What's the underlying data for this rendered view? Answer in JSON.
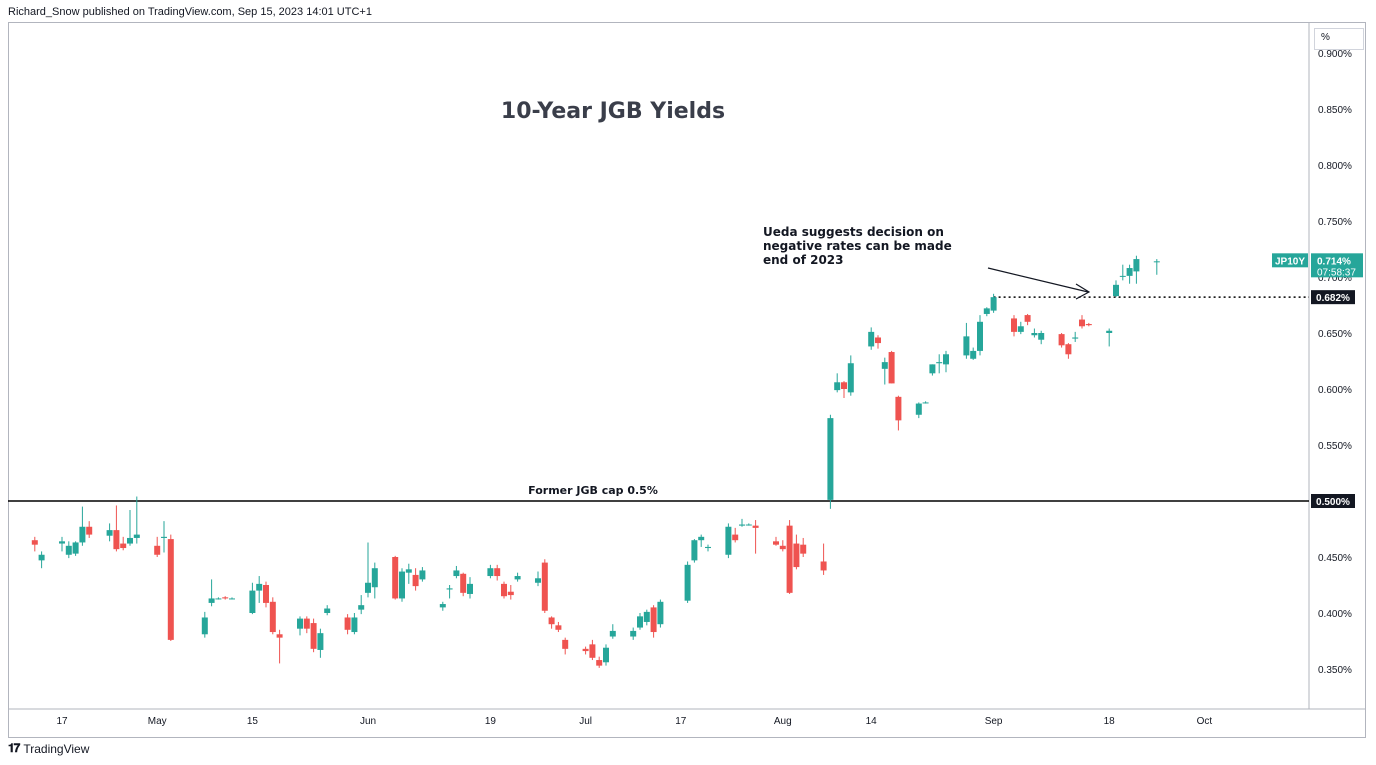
{
  "header": {
    "published": "Richard_Snow published on TradingView.com, Sep 15, 2023 14:01 UTC+1"
  },
  "footer": {
    "brand": "TradingView"
  },
  "colors": {
    "up": "#26a69a",
    "down": "#ef5350",
    "axis_text": "#131722",
    "grid_line": "#000000"
  },
  "chart_data": {
    "type": "candlestick",
    "title": "10-Year JGB Yields",
    "y_unit": "%",
    "ylim": [
      0.3,
      0.91
    ],
    "y_ticks": [
      "0.900%",
      "0.850%",
      "0.800%",
      "0.750%",
      "0.700%",
      "0.650%",
      "0.600%",
      "0.550%",
      "0.500%",
      "0.450%",
      "0.400%",
      "0.350%"
    ],
    "x_ticks": [
      {
        "label": "17",
        "date": "2023-04-17"
      },
      {
        "label": "May",
        "date": "2023-05-01"
      },
      {
        "label": "15",
        "date": "2023-05-15"
      },
      {
        "label": "Jun",
        "date": "2023-06-01"
      },
      {
        "label": "19",
        "date": "2023-06-19"
      },
      {
        "label": "Jul",
        "date": "2023-07-03"
      },
      {
        "label": "17",
        "date": "2023-07-17"
      },
      {
        "label": "Aug",
        "date": "2023-08-01"
      },
      {
        "label": "14",
        "date": "2023-08-14"
      },
      {
        "label": "Sep",
        "date": "2023-09-01"
      },
      {
        "label": "18",
        "date": "2023-09-18"
      },
      {
        "label": "Oct",
        "date": "2023-10-02"
      }
    ],
    "series_label": "JP10Y",
    "last_value_label": "0.714%",
    "countdown": "07:58:37",
    "hline_value": 0.5,
    "hline_label": "0.500%",
    "hline_annotation": "Former JGB cap 0.5%",
    "dotted_level": 0.682,
    "dotted_label": "0.682%",
    "annotation": [
      "Ueda suggests decision on",
      "negative rates can be made",
      "end of 2023"
    ],
    "candles": [
      {
        "d": "2023-04-13",
        "o": 0.465,
        "h": 0.468,
        "l": 0.455,
        "c": 0.461
      },
      {
        "d": "2023-04-14",
        "o": 0.447,
        "h": 0.455,
        "l": 0.44,
        "c": 0.452
      },
      {
        "d": "2023-04-17",
        "o": 0.462,
        "h": 0.468,
        "l": 0.455,
        "c": 0.464
      },
      {
        "d": "2023-04-18",
        "o": 0.452,
        "h": 0.464,
        "l": 0.449,
        "c": 0.46
      },
      {
        "d": "2023-04-19",
        "o": 0.453,
        "h": 0.464,
        "l": 0.451,
        "c": 0.463
      },
      {
        "d": "2023-04-20",
        "o": 0.463,
        "h": 0.495,
        "l": 0.46,
        "c": 0.477
      },
      {
        "d": "2023-04-21",
        "o": 0.477,
        "h": 0.482,
        "l": 0.467,
        "c": 0.47
      },
      {
        "d": "2023-04-24",
        "o": 0.469,
        "h": 0.48,
        "l": 0.464,
        "c": 0.474
      },
      {
        "d": "2023-04-25",
        "o": 0.474,
        "h": 0.496,
        "l": 0.455,
        "c": 0.457
      },
      {
        "d": "2023-04-26",
        "o": 0.462,
        "h": 0.468,
        "l": 0.456,
        "c": 0.458
      },
      {
        "d": "2023-04-27",
        "o": 0.462,
        "h": 0.492,
        "l": 0.46,
        "c": 0.467
      },
      {
        "d": "2023-04-28",
        "o": 0.467,
        "h": 0.504,
        "l": 0.462,
        "c": 0.47
      },
      {
        "d": "2023-05-01",
        "o": 0.46,
        "h": 0.468,
        "l": 0.45,
        "c": 0.452
      },
      {
        "d": "2023-05-02",
        "o": 0.467,
        "h": 0.482,
        "l": 0.454,
        "c": 0.468
      },
      {
        "d": "2023-05-03",
        "o": 0.466,
        "h": 0.47,
        "l": 0.375,
        "c": 0.376
      },
      {
        "d": "2023-05-08",
        "o": 0.381,
        "h": 0.401,
        "l": 0.378,
        "c": 0.396
      },
      {
        "d": "2023-05-09",
        "o": 0.409,
        "h": 0.43,
        "l": 0.406,
        "c": 0.413
      },
      {
        "d": "2023-05-10",
        "o": 0.413,
        "h": 0.414,
        "l": 0.412,
        "c": 0.413
      },
      {
        "d": "2023-05-11",
        "o": 0.414,
        "h": 0.415,
        "l": 0.412,
        "c": 0.413
      },
      {
        "d": "2023-05-12",
        "o": 0.413,
        "h": 0.414,
        "l": 0.412,
        "c": 0.413
      },
      {
        "d": "2023-05-15",
        "o": 0.4,
        "h": 0.427,
        "l": 0.399,
        "c": 0.42
      },
      {
        "d": "2023-05-16",
        "o": 0.42,
        "h": 0.433,
        "l": 0.409,
        "c": 0.426
      },
      {
        "d": "2023-05-17",
        "o": 0.425,
        "h": 0.428,
        "l": 0.405,
        "c": 0.409
      },
      {
        "d": "2023-05-18",
        "o": 0.41,
        "h": 0.414,
        "l": 0.381,
        "c": 0.383
      },
      {
        "d": "2023-05-19",
        "o": 0.381,
        "h": 0.385,
        "l": 0.355,
        "c": 0.378
      },
      {
        "d": "2023-05-22",
        "o": 0.386,
        "h": 0.397,
        "l": 0.38,
        "c": 0.395
      },
      {
        "d": "2023-05-23",
        "o": 0.395,
        "h": 0.397,
        "l": 0.382,
        "c": 0.386
      },
      {
        "d": "2023-05-24",
        "o": 0.391,
        "h": 0.395,
        "l": 0.365,
        "c": 0.368
      },
      {
        "d": "2023-05-25",
        "o": 0.367,
        "h": 0.386,
        "l": 0.36,
        "c": 0.382
      },
      {
        "d": "2023-05-26",
        "o": 0.4,
        "h": 0.407,
        "l": 0.398,
        "c": 0.404
      },
      {
        "d": "2023-05-29",
        "o": 0.396,
        "h": 0.399,
        "l": 0.381,
        "c": 0.385
      },
      {
        "d": "2023-05-30",
        "o": 0.383,
        "h": 0.4,
        "l": 0.381,
        "c": 0.396
      },
      {
        "d": "2023-05-31",
        "o": 0.403,
        "h": 0.416,
        "l": 0.399,
        "c": 0.407
      },
      {
        "d": "2023-06-01",
        "o": 0.418,
        "h": 0.463,
        "l": 0.414,
        "c": 0.427
      },
      {
        "d": "2023-06-02",
        "o": 0.423,
        "h": 0.445,
        "l": 0.413,
        "c": 0.44
      },
      {
        "d": "2023-06-05",
        "o": 0.45,
        "h": 0.451,
        "l": 0.412,
        "c": 0.413
      },
      {
        "d": "2023-06-06",
        "o": 0.413,
        "h": 0.44,
        "l": 0.41,
        "c": 0.437
      },
      {
        "d": "2023-06-07",
        "o": 0.436,
        "h": 0.444,
        "l": 0.426,
        "c": 0.439
      },
      {
        "d": "2023-06-08",
        "o": 0.434,
        "h": 0.44,
        "l": 0.42,
        "c": 0.424
      },
      {
        "d": "2023-06-09",
        "o": 0.43,
        "h": 0.441,
        "l": 0.428,
        "c": 0.438
      },
      {
        "d": "2023-06-12",
        "o": 0.405,
        "h": 0.41,
        "l": 0.402,
        "c": 0.408
      },
      {
        "d": "2023-06-13",
        "o": 0.421,
        "h": 0.425,
        "l": 0.413,
        "c": 0.422
      },
      {
        "d": "2023-06-14",
        "o": 0.433,
        "h": 0.442,
        "l": 0.431,
        "c": 0.438
      },
      {
        "d": "2023-06-15",
        "o": 0.435,
        "h": 0.436,
        "l": 0.415,
        "c": 0.418
      },
      {
        "d": "2023-06-16",
        "o": 0.417,
        "h": 0.432,
        "l": 0.413,
        "c": 0.426
      },
      {
        "d": "2023-06-19",
        "o": 0.433,
        "h": 0.443,
        "l": 0.431,
        "c": 0.44
      },
      {
        "d": "2023-06-20",
        "o": 0.44,
        "h": 0.443,
        "l": 0.429,
        "c": 0.433
      },
      {
        "d": "2023-06-21",
        "o": 0.426,
        "h": 0.428,
        "l": 0.413,
        "c": 0.415
      },
      {
        "d": "2023-06-22",
        "o": 0.419,
        "h": 0.425,
        "l": 0.412,
        "c": 0.416
      },
      {
        "d": "2023-06-23",
        "o": 0.43,
        "h": 0.436,
        "l": 0.428,
        "c": 0.433
      },
      {
        "d": "2023-06-26",
        "o": 0.427,
        "h": 0.437,
        "l": 0.424,
        "c": 0.431
      },
      {
        "d": "2023-06-27",
        "o": 0.445,
        "h": 0.448,
        "l": 0.4,
        "c": 0.402
      },
      {
        "d": "2023-06-28",
        "o": 0.396,
        "h": 0.397,
        "l": 0.386,
        "c": 0.39
      },
      {
        "d": "2023-06-29",
        "o": 0.389,
        "h": 0.392,
        "l": 0.383,
        "c": 0.385
      },
      {
        "d": "2023-06-30",
        "o": 0.376,
        "h": 0.378,
        "l": 0.363,
        "c": 0.368
      },
      {
        "d": "2023-07-03",
        "o": 0.368,
        "h": 0.37,
        "l": 0.363,
        "c": 0.366
      },
      {
        "d": "2023-07-04",
        "o": 0.372,
        "h": 0.376,
        "l": 0.358,
        "c": 0.36
      },
      {
        "d": "2023-07-05",
        "o": 0.358,
        "h": 0.361,
        "l": 0.351,
        "c": 0.353
      },
      {
        "d": "2023-07-06",
        "o": 0.356,
        "h": 0.372,
        "l": 0.353,
        "c": 0.369
      },
      {
        "d": "2023-07-07",
        "o": 0.379,
        "h": 0.39,
        "l": 0.377,
        "c": 0.384
      },
      {
        "d": "2023-07-10",
        "o": 0.379,
        "h": 0.387,
        "l": 0.376,
        "c": 0.384
      },
      {
        "d": "2023-07-11",
        "o": 0.387,
        "h": 0.4,
        "l": 0.385,
        "c": 0.397
      },
      {
        "d": "2023-07-12",
        "o": 0.392,
        "h": 0.403,
        "l": 0.389,
        "c": 0.401
      },
      {
        "d": "2023-07-13",
        "o": 0.405,
        "h": 0.407,
        "l": 0.378,
        "c": 0.383
      },
      {
        "d": "2023-07-14",
        "o": 0.39,
        "h": 0.412,
        "l": 0.387,
        "c": 0.41
      },
      {
        "d": "2023-07-18",
        "o": 0.411,
        "h": 0.446,
        "l": 0.409,
        "c": 0.443
      },
      {
        "d": "2023-07-19",
        "o": 0.447,
        "h": 0.466,
        "l": 0.445,
        "c": 0.465
      },
      {
        "d": "2023-07-20",
        "o": 0.465,
        "h": 0.47,
        "l": 0.459,
        "c": 0.468
      },
      {
        "d": "2023-07-21",
        "o": 0.458,
        "h": 0.461,
        "l": 0.455,
        "c": 0.459
      },
      {
        "d": "2023-07-24",
        "o": 0.452,
        "h": 0.48,
        "l": 0.449,
        "c": 0.477
      },
      {
        "d": "2023-07-25",
        "o": 0.47,
        "h": 0.476,
        "l": 0.463,
        "c": 0.465
      },
      {
        "d": "2023-07-26",
        "o": 0.478,
        "h": 0.484,
        "l": 0.477,
        "c": 0.479
      },
      {
        "d": "2023-07-27",
        "o": 0.479,
        "h": 0.48,
        "l": 0.478,
        "c": 0.479
      },
      {
        "d": "2023-07-28",
        "o": 0.478,
        "h": 0.483,
        "l": 0.453,
        "c": 0.476
      },
      {
        "d": "2023-07-31",
        "o": 0.464,
        "h": 0.468,
        "l": 0.46,
        "c": 0.461
      },
      {
        "d": "2023-08-01",
        "o": 0.46,
        "h": 0.465,
        "l": 0.455,
        "c": 0.457
      },
      {
        "d": "2023-08-02",
        "o": 0.478,
        "h": 0.483,
        "l": 0.417,
        "c": 0.418
      },
      {
        "d": "2023-08-03",
        "o": 0.462,
        "h": 0.47,
        "l": 0.439,
        "c": 0.441
      },
      {
        "d": "2023-08-04",
        "o": 0.461,
        "h": 0.467,
        "l": 0.45,
        "c": 0.453
      },
      {
        "d": "2023-08-07",
        "o": 0.446,
        "h": 0.462,
        "l": 0.434,
        "c": 0.438
      },
      {
        "d": "2023-08-08",
        "o": 0.501,
        "h": 0.577,
        "l": 0.493,
        "c": 0.574
      },
      {
        "d": "2023-08-09",
        "o": 0.599,
        "h": 0.614,
        "l": 0.597,
        "c": 0.606
      },
      {
        "d": "2023-08-10",
        "o": 0.606,
        "h": 0.607,
        "l": 0.592,
        "c": 0.6
      },
      {
        "d": "2023-08-11",
        "o": 0.597,
        "h": 0.63,
        "l": 0.594,
        "c": 0.623
      },
      {
        "d": "2023-08-14",
        "o": 0.638,
        "h": 0.655,
        "l": 0.635,
        "c": 0.651
      },
      {
        "d": "2023-08-15",
        "o": 0.646,
        "h": 0.648,
        "l": 0.636,
        "c": 0.641
      },
      {
        "d": "2023-08-16",
        "o": 0.618,
        "h": 0.628,
        "l": 0.604,
        "c": 0.624
      },
      {
        "d": "2023-08-17",
        "o": 0.633,
        "h": 0.634,
        "l": 0.605,
        "c": 0.605
      },
      {
        "d": "2023-08-18",
        "o": 0.593,
        "h": 0.594,
        "l": 0.563,
        "c": 0.572
      },
      {
        "d": "2023-08-21",
        "o": 0.577,
        "h": 0.588,
        "l": 0.574,
        "c": 0.587
      },
      {
        "d": "2023-08-22",
        "o": 0.588,
        "h": 0.589,
        "l": 0.587,
        "c": 0.588
      },
      {
        "d": "2023-08-23",
        "o": 0.614,
        "h": 0.622,
        "l": 0.612,
        "c": 0.622
      },
      {
        "d": "2023-08-24",
        "o": 0.623,
        "h": 0.631,
        "l": 0.614,
        "c": 0.624
      },
      {
        "d": "2023-08-25",
        "o": 0.622,
        "h": 0.634,
        "l": 0.615,
        "c": 0.631
      },
      {
        "d": "2023-08-28",
        "o": 0.63,
        "h": 0.659,
        "l": 0.627,
        "c": 0.647
      },
      {
        "d": "2023-08-29",
        "o": 0.627,
        "h": 0.637,
        "l": 0.626,
        "c": 0.634
      },
      {
        "d": "2023-08-30",
        "o": 0.634,
        "h": 0.666,
        "l": 0.63,
        "c": 0.66
      },
      {
        "d": "2023-08-31",
        "o": 0.667,
        "h": 0.673,
        "l": 0.665,
        "c": 0.672
      },
      {
        "d": "2023-09-01",
        "o": 0.67,
        "h": 0.685,
        "l": 0.668,
        "c": 0.682
      },
      {
        "d": "2023-09-04",
        "o": 0.663,
        "h": 0.666,
        "l": 0.647,
        "c": 0.651
      },
      {
        "d": "2023-09-05",
        "o": 0.651,
        "h": 0.66,
        "l": 0.649,
        "c": 0.656
      },
      {
        "d": "2023-09-06",
        "o": 0.666,
        "h": 0.667,
        "l": 0.657,
        "c": 0.66
      },
      {
        "d": "2023-09-07",
        "o": 0.648,
        "h": 0.654,
        "l": 0.646,
        "c": 0.65
      },
      {
        "d": "2023-09-08",
        "o": 0.644,
        "h": 0.652,
        "l": 0.64,
        "c": 0.65
      },
      {
        "d": "2023-09-11",
        "o": 0.649,
        "h": 0.65,
        "l": 0.637,
        "c": 0.639
      },
      {
        "d": "2023-09-12",
        "o": 0.64,
        "h": 0.641,
        "l": 0.627,
        "c": 0.631
      },
      {
        "d": "2023-09-13",
        "o": 0.645,
        "h": 0.651,
        "l": 0.642,
        "c": 0.646
      },
      {
        "d": "2023-09-14",
        "o": 0.662,
        "h": 0.666,
        "l": 0.654,
        "c": 0.656
      },
      {
        "d": "2023-09-15",
        "o": 0.658,
        "h": 0.659,
        "l": 0.656,
        "c": 0.657
      },
      {
        "d": "2023-09-18",
        "o": 0.65,
        "h": 0.654,
        "l": 0.638,
        "c": 0.652
      },
      {
        "d": "2023-09-19",
        "o": 0.683,
        "h": 0.697,
        "l": 0.682,
        "c": 0.693
      },
      {
        "d": "2023-09-20",
        "o": 0.701,
        "h": 0.711,
        "l": 0.697,
        "c": 0.701
      },
      {
        "d": "2023-09-21",
        "o": 0.701,
        "h": 0.711,
        "l": 0.694,
        "c": 0.708
      },
      {
        "d": "2023-09-22",
        "o": 0.705,
        "h": 0.719,
        "l": 0.694,
        "c": 0.716
      },
      {
        "d": "2023-09-25",
        "o": 0.714,
        "h": 0.716,
        "l": 0.702,
        "c": 0.714
      }
    ]
  }
}
